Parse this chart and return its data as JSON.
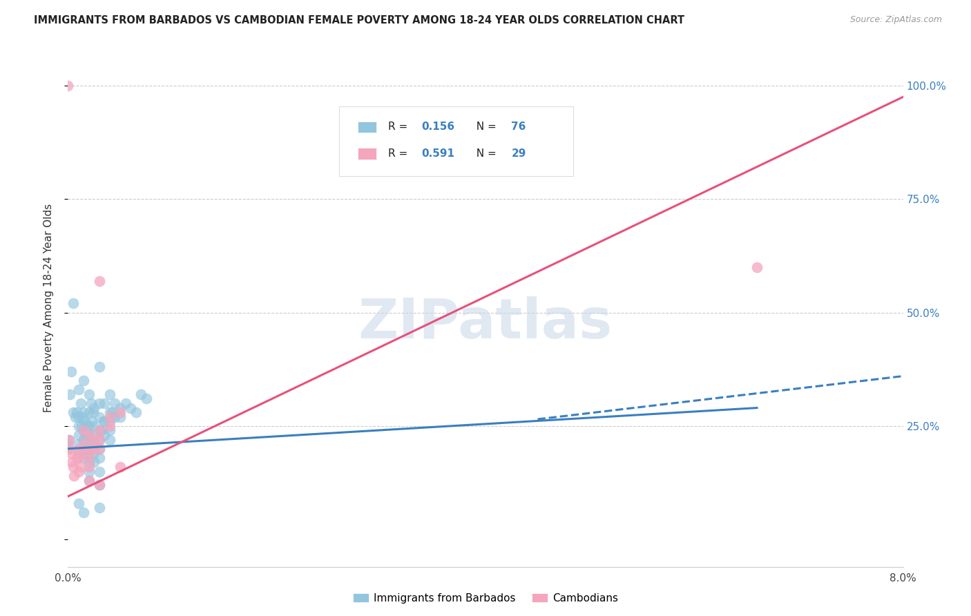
{
  "title": "IMMIGRANTS FROM BARBADOS VS CAMBODIAN FEMALE POVERTY AMONG 18-24 YEAR OLDS CORRELATION CHART",
  "source": "Source: ZipAtlas.com",
  "ylabel": "Female Poverty Among 18-24 Year Olds",
  "xmin": 0.0,
  "xmax": 0.08,
  "ymin": -0.06,
  "ymax": 1.08,
  "label1": "Immigrants from Barbados",
  "label2": "Cambodians",
  "color1": "#92c5de",
  "color2": "#f4a6bd",
  "line_color1": "#3a7fc1",
  "line_color2": "#e8517a",
  "color_blue_text": "#3a7fc1",
  "watermark": "ZIPatlas",
  "blue_scatter": [
    [
      0.0002,
      0.32
    ],
    [
      0.0003,
      0.37
    ],
    [
      0.0005,
      0.52
    ],
    [
      0.0005,
      0.28
    ],
    [
      0.0007,
      0.27
    ],
    [
      0.0008,
      0.28
    ],
    [
      0.001,
      0.33
    ],
    [
      0.001,
      0.27
    ],
    [
      0.001,
      0.25
    ],
    [
      0.001,
      0.23
    ],
    [
      0.001,
      0.21
    ],
    [
      0.001,
      0.19
    ],
    [
      0.0012,
      0.3
    ],
    [
      0.0013,
      0.25
    ],
    [
      0.0014,
      0.27
    ],
    [
      0.0015,
      0.35
    ],
    [
      0.0015,
      0.28
    ],
    [
      0.0015,
      0.24
    ],
    [
      0.0015,
      0.22
    ],
    [
      0.0015,
      0.2
    ],
    [
      0.0015,
      0.18
    ],
    [
      0.0016,
      0.26
    ],
    [
      0.0017,
      0.23
    ],
    [
      0.0018,
      0.25
    ],
    [
      0.002,
      0.32
    ],
    [
      0.002,
      0.28
    ],
    [
      0.002,
      0.25
    ],
    [
      0.002,
      0.23
    ],
    [
      0.002,
      0.21
    ],
    [
      0.002,
      0.19
    ],
    [
      0.002,
      0.17
    ],
    [
      0.002,
      0.15
    ],
    [
      0.002,
      0.13
    ],
    [
      0.0022,
      0.3
    ],
    [
      0.0023,
      0.26
    ],
    [
      0.0024,
      0.28
    ],
    [
      0.0025,
      0.29
    ],
    [
      0.0025,
      0.25
    ],
    [
      0.0025,
      0.23
    ],
    [
      0.0025,
      0.21
    ],
    [
      0.0025,
      0.19
    ],
    [
      0.0025,
      0.17
    ],
    [
      0.003,
      0.38
    ],
    [
      0.003,
      0.3
    ],
    [
      0.003,
      0.27
    ],
    [
      0.003,
      0.24
    ],
    [
      0.003,
      0.22
    ],
    [
      0.003,
      0.2
    ],
    [
      0.003,
      0.18
    ],
    [
      0.003,
      0.15
    ],
    [
      0.003,
      0.12
    ],
    [
      0.0032,
      0.24
    ],
    [
      0.0034,
      0.26
    ],
    [
      0.0035,
      0.3
    ],
    [
      0.0035,
      0.26
    ],
    [
      0.0035,
      0.23
    ],
    [
      0.004,
      0.32
    ],
    [
      0.004,
      0.28
    ],
    [
      0.004,
      0.26
    ],
    [
      0.004,
      0.24
    ],
    [
      0.004,
      0.22
    ],
    [
      0.0042,
      0.28
    ],
    [
      0.0045,
      0.3
    ],
    [
      0.0045,
      0.27
    ],
    [
      0.005,
      0.29
    ],
    [
      0.005,
      0.27
    ],
    [
      0.0055,
      0.3
    ],
    [
      0.006,
      0.29
    ],
    [
      0.0065,
      0.28
    ],
    [
      0.007,
      0.32
    ],
    [
      0.0075,
      0.31
    ],
    [
      0.0,
      0.21
    ],
    [
      0.0,
      0.2
    ],
    [
      0.0001,
      0.22
    ],
    [
      0.001,
      0.08
    ],
    [
      0.0015,
      0.06
    ],
    [
      0.003,
      0.07
    ]
  ],
  "pink_scatter": [
    [
      0.0001,
      0.22
    ],
    [
      0.0002,
      0.2
    ],
    [
      0.0003,
      0.19
    ],
    [
      0.0004,
      0.17
    ],
    [
      0.0005,
      0.16
    ],
    [
      0.0006,
      0.14
    ],
    [
      0.0008,
      0.18
    ],
    [
      0.001,
      0.2
    ],
    [
      0.001,
      0.18
    ],
    [
      0.001,
      0.15
    ],
    [
      0.0012,
      0.16
    ],
    [
      0.0015,
      0.24
    ],
    [
      0.0015,
      0.21
    ],
    [
      0.0015,
      0.19
    ],
    [
      0.002,
      0.23
    ],
    [
      0.002,
      0.2
    ],
    [
      0.002,
      0.18
    ],
    [
      0.002,
      0.16
    ],
    [
      0.002,
      0.13
    ],
    [
      0.0025,
      0.22
    ],
    [
      0.0025,
      0.2
    ],
    [
      0.003,
      0.57
    ],
    [
      0.003,
      0.24
    ],
    [
      0.003,
      0.22
    ],
    [
      0.003,
      0.2
    ],
    [
      0.003,
      0.12
    ],
    [
      0.004,
      0.27
    ],
    [
      0.004,
      0.25
    ],
    [
      0.005,
      0.28
    ],
    [
      0.005,
      0.16
    ],
    [
      0.0,
      1.0
    ],
    [
      0.066,
      0.6
    ]
  ],
  "blue_line": {
    "x": [
      0.0,
      0.066
    ],
    "y": [
      0.2,
      0.29
    ]
  },
  "blue_dashed": {
    "x": [
      0.045,
      0.08
    ],
    "y": [
      0.265,
      0.36
    ]
  },
  "pink_line": {
    "x": [
      0.0,
      0.08
    ],
    "y": [
      0.095,
      0.975
    ]
  },
  "xticks": [
    0.0,
    0.01,
    0.02,
    0.03,
    0.04,
    0.05,
    0.06,
    0.07,
    0.08
  ],
  "xtick_labels": [
    "0.0%",
    "",
    "",
    "",
    "",
    "",
    "",
    "",
    "8.0%"
  ],
  "yticks": [
    0.0,
    0.25,
    0.5,
    0.75,
    1.0
  ],
  "ytick_right_labels": [
    "",
    "25.0%",
    "50.0%",
    "75.0%",
    "100.0%"
  ]
}
